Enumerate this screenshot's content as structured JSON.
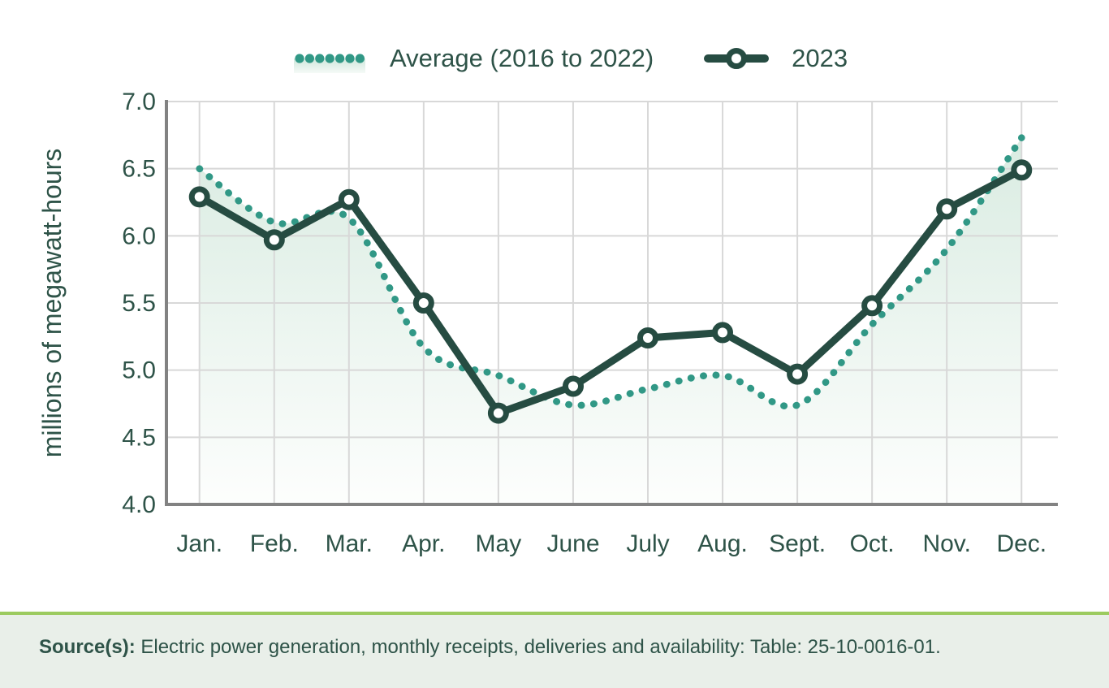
{
  "legend": {
    "average_label": "Average (2016 to 2022)",
    "y2023_label": "2023"
  },
  "chart_data": {
    "type": "line",
    "title": "",
    "categories": [
      "Jan.",
      "Feb.",
      "Mar.",
      "Apr.",
      "May",
      "June",
      "July",
      "Aug.",
      "Sept.",
      "Oct.",
      "Nov.",
      "Dec."
    ],
    "series": [
      {
        "name": "Average (2016 to 2022)",
        "style": "dotted-area",
        "values": [
          6.5,
          6.1,
          6.13,
          5.17,
          4.96,
          4.74,
          4.86,
          4.96,
          4.74,
          5.34,
          5.9,
          6.73
        ]
      },
      {
        "name": "2023",
        "style": "solid-markers",
        "values": [
          6.29,
          5.97,
          6.27,
          5.5,
          4.68,
          4.88,
          5.24,
          5.28,
          4.97,
          5.48,
          6.2,
          6.49
        ]
      }
    ],
    "xlabel": "",
    "ylabel": "millions of megawatt-hours",
    "ylim": [
      4.0,
      7.0
    ],
    "yticks": [
      "7.0",
      "6.5",
      "6.0",
      "5.5",
      "5.0",
      "4.5",
      "4.0"
    ],
    "grid": true,
    "legend_position": "top"
  },
  "source": {
    "label": "Source(s):",
    "text": "Electric power generation, monthly receipts, deliveries and availability: Table: 25-10-0016-01."
  },
  "colors": {
    "average": "#319886",
    "y2023": "#264C42",
    "text": "#2E5348",
    "grid": "#D8D8D8",
    "axis": "#828282",
    "fill_top": "#D6EADF",
    "fill_bottom": "#FDFEFD",
    "legend_fill_top": "#CFE7DC",
    "legend_fill_bottom": "#F5FAF7",
    "source_bg": "#E9EFE9",
    "source_border": "#9CCB5F"
  }
}
